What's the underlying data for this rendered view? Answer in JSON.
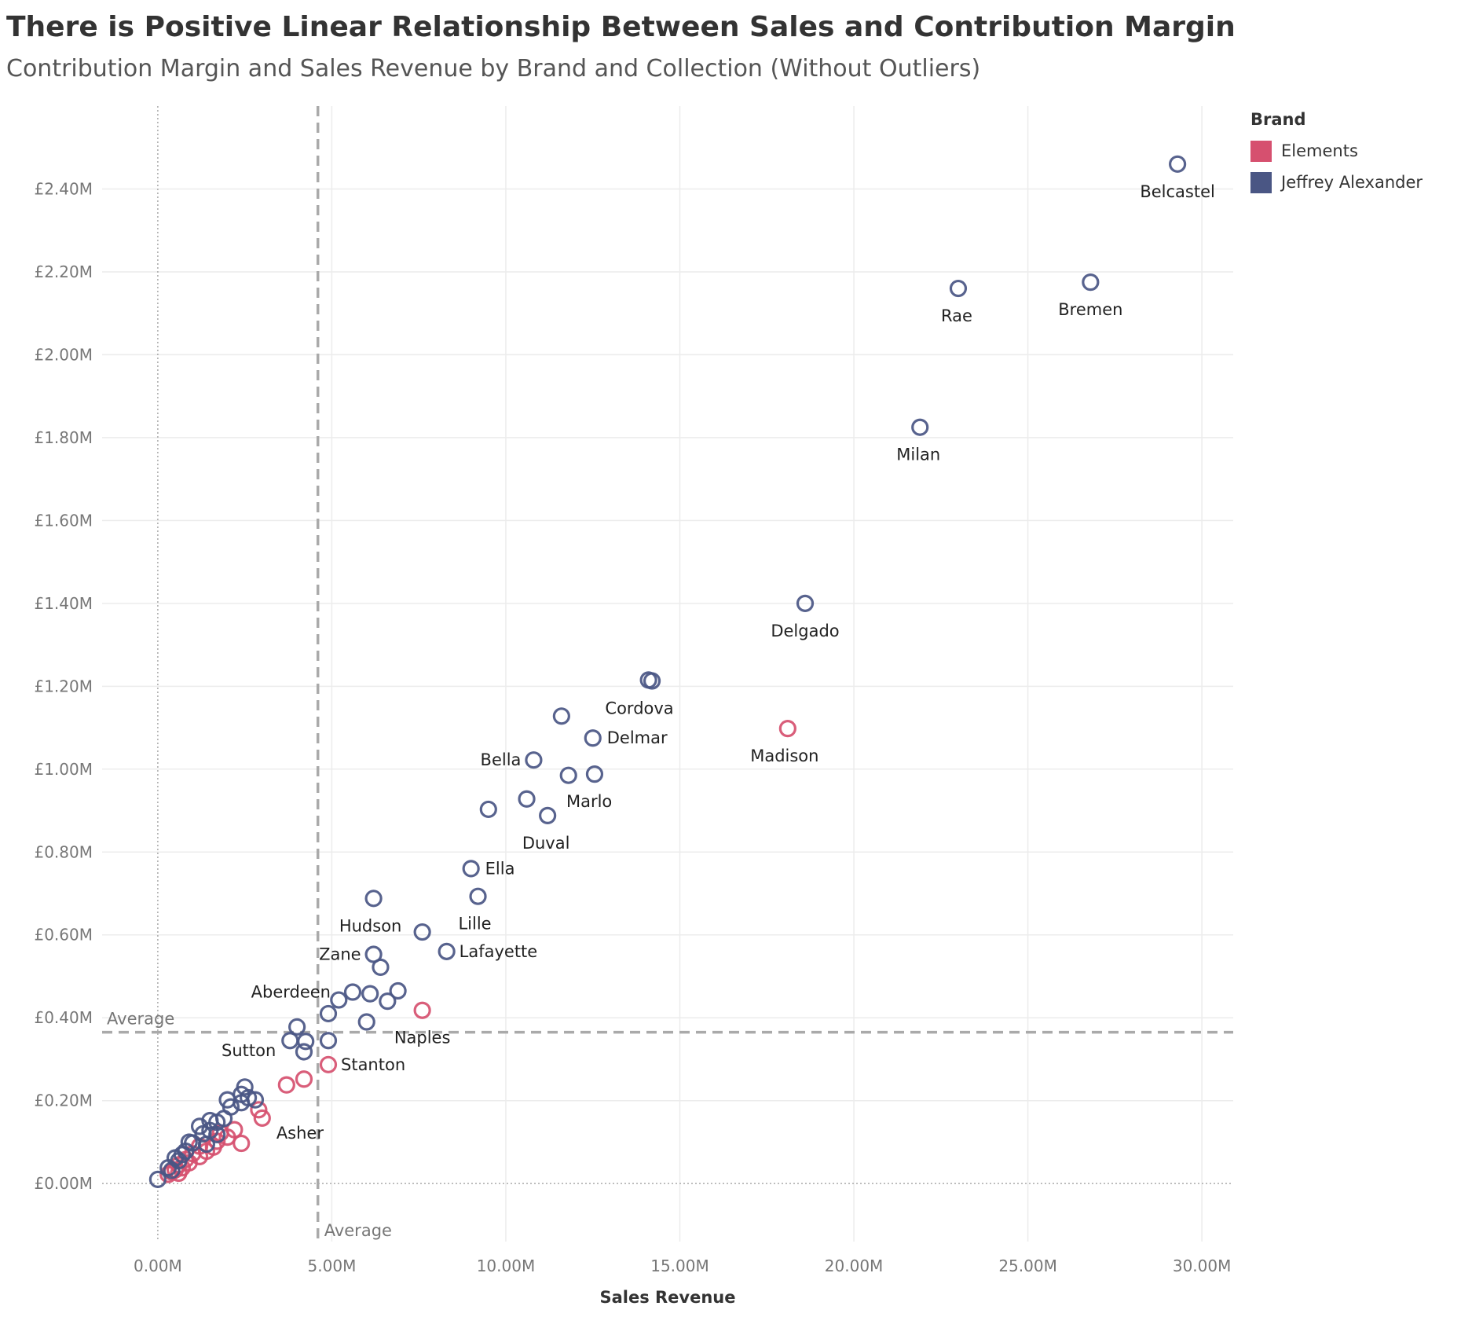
{
  "chart_data": {
    "type": "scatter",
    "title": "There is Positive Linear Relationship Between Sales and Contribution Margin",
    "subtitle": "Contribution Margin and Sales Revenue by Brand and Collection (Without Outliers)",
    "xlabel": "Sales Revenue",
    "ylabel": "",
    "xlim": [
      -1.6,
      30.9
    ],
    "ylim": [
      -0.14,
      2.6
    ],
    "x_ticks": [
      0,
      5,
      10,
      15,
      20,
      25,
      30
    ],
    "x_tick_labels": [
      "0.00M",
      "5.00M",
      "10.00M",
      "15.00M",
      "20.00M",
      "25.00M",
      "30.00M"
    ],
    "y_ticks": [
      0,
      0.2,
      0.4,
      0.6,
      0.8,
      1.0,
      1.2,
      1.4,
      1.6,
      1.8,
      2.0,
      2.2,
      2.4
    ],
    "y_tick_labels": [
      "£0.00M",
      "£0.20M",
      "£0.40M",
      "£0.60M",
      "£0.80M",
      "£1.00M",
      "£1.20M",
      "£1.40M",
      "£1.60M",
      "£1.80M",
      "£2.00M",
      "£2.20M",
      "£2.40M"
    ],
    "grid": true,
    "legend": {
      "title": "Brand",
      "position": "top-right",
      "entries": [
        {
          "name": "Elements",
          "color": "#d6506f"
        },
        {
          "name": "Jeffrey Alexander",
          "color": "#4a5684"
        }
      ]
    },
    "reference_lines": {
      "x_average": {
        "value": 4.6,
        "label": "Average"
      },
      "y_average": {
        "value": 0.365,
        "label": "Average"
      }
    },
    "series": [
      {
        "name": "Jeffrey Alexander",
        "color": "#4a5684",
        "points": [
          {
            "x": 29.3,
            "y": 2.46,
            "label": "Belcastel"
          },
          {
            "x": 26.8,
            "y": 2.175,
            "label": "Bremen"
          },
          {
            "x": 23.0,
            "y": 2.16,
            "label": "Rae"
          },
          {
            "x": 21.9,
            "y": 1.825,
            "label": "Milan"
          },
          {
            "x": 18.6,
            "y": 1.4,
            "label": "Delgado"
          },
          {
            "x": 14.1,
            "y": 1.215,
            "label": ""
          },
          {
            "x": 14.2,
            "y": 1.213,
            "label": "Cordova"
          },
          {
            "x": 11.6,
            "y": 1.128,
            "label": ""
          },
          {
            "x": 12.5,
            "y": 1.075,
            "label": "Delmar"
          },
          {
            "x": 10.8,
            "y": 1.022,
            "label": "Bella"
          },
          {
            "x": 11.8,
            "y": 0.985,
            "label": ""
          },
          {
            "x": 12.55,
            "y": 0.988,
            "label": "Marlo"
          },
          {
            "x": 10.6,
            "y": 0.928,
            "label": ""
          },
          {
            "x": 9.5,
            "y": 0.903,
            "label": ""
          },
          {
            "x": 11.2,
            "y": 0.888,
            "label": "Duval"
          },
          {
            "x": 9.0,
            "y": 0.76,
            "label": "Ella"
          },
          {
            "x": 9.2,
            "y": 0.693,
            "label": "Lille"
          },
          {
            "x": 6.2,
            "y": 0.688,
            "label": "Hudson"
          },
          {
            "x": 7.6,
            "y": 0.607,
            "label": ""
          },
          {
            "x": 8.3,
            "y": 0.56,
            "label": "Lafayette"
          },
          {
            "x": 6.2,
            "y": 0.553,
            "label": "Zane"
          },
          {
            "x": 6.4,
            "y": 0.522,
            "label": ""
          },
          {
            "x": 5.6,
            "y": 0.462,
            "label": "Aberdeen"
          },
          {
            "x": 6.1,
            "y": 0.458,
            "label": ""
          },
          {
            "x": 6.9,
            "y": 0.465,
            "label": ""
          },
          {
            "x": 5.2,
            "y": 0.443,
            "label": ""
          },
          {
            "x": 6.6,
            "y": 0.44,
            "label": ""
          },
          {
            "x": 4.9,
            "y": 0.41,
            "label": ""
          },
          {
            "x": 6.0,
            "y": 0.39,
            "label": ""
          },
          {
            "x": 4.0,
            "y": 0.378,
            "label": ""
          },
          {
            "x": 3.8,
            "y": 0.345,
            "label": "Sutton"
          },
          {
            "x": 4.25,
            "y": 0.343,
            "label": ""
          },
          {
            "x": 4.9,
            "y": 0.345,
            "label": ""
          },
          {
            "x": 4.2,
            "y": 0.318,
            "label": ""
          },
          {
            "x": 2.5,
            "y": 0.233,
            "label": ""
          },
          {
            "x": 2.4,
            "y": 0.215,
            "label": ""
          },
          {
            "x": 2.6,
            "y": 0.207,
            "label": ""
          },
          {
            "x": 2.8,
            "y": 0.202,
            "label": ""
          },
          {
            "x": 2.0,
            "y": 0.202,
            "label": ""
          },
          {
            "x": 2.4,
            "y": 0.195,
            "label": ""
          },
          {
            "x": 2.1,
            "y": 0.185,
            "label": ""
          },
          {
            "x": 1.9,
            "y": 0.157,
            "label": ""
          },
          {
            "x": 1.5,
            "y": 0.152,
            "label": ""
          },
          {
            "x": 1.7,
            "y": 0.148,
            "label": ""
          },
          {
            "x": 1.2,
            "y": 0.138,
            "label": ""
          },
          {
            "x": 1.5,
            "y": 0.128,
            "label": ""
          },
          {
            "x": 1.3,
            "y": 0.12,
            "label": ""
          },
          {
            "x": 1.7,
            "y": 0.118,
            "label": ""
          },
          {
            "x": 0.9,
            "y": 0.1,
            "label": ""
          },
          {
            "x": 1.0,
            "y": 0.098,
            "label": ""
          },
          {
            "x": 1.4,
            "y": 0.095,
            "label": ""
          },
          {
            "x": 0.8,
            "y": 0.078,
            "label": ""
          },
          {
            "x": 0.7,
            "y": 0.07,
            "label": ""
          },
          {
            "x": 0.5,
            "y": 0.062,
            "label": ""
          },
          {
            "x": 0.6,
            "y": 0.055,
            "label": ""
          },
          {
            "x": 0.3,
            "y": 0.038,
            "label": ""
          },
          {
            "x": 0.4,
            "y": 0.032,
            "label": ""
          },
          {
            "x": 0.0,
            "y": 0.01,
            "label": ""
          }
        ]
      },
      {
        "name": "Elements",
        "color": "#d6506f",
        "points": [
          {
            "x": 18.1,
            "y": 1.098,
            "label": "Madison"
          },
          {
            "x": 7.6,
            "y": 0.418,
            "label": "Naples"
          },
          {
            "x": 4.9,
            "y": 0.287,
            "label": "Stanton"
          },
          {
            "x": 4.2,
            "y": 0.252,
            "label": ""
          },
          {
            "x": 3.7,
            "y": 0.238,
            "label": ""
          },
          {
            "x": 2.9,
            "y": 0.178,
            "label": ""
          },
          {
            "x": 3.0,
            "y": 0.158,
            "label": "Asher"
          },
          {
            "x": 2.2,
            "y": 0.13,
            "label": ""
          },
          {
            "x": 1.8,
            "y": 0.122,
            "label": ""
          },
          {
            "x": 2.0,
            "y": 0.112,
            "label": ""
          },
          {
            "x": 1.7,
            "y": 0.102,
            "label": ""
          },
          {
            "x": 2.4,
            "y": 0.097,
            "label": ""
          },
          {
            "x": 1.6,
            "y": 0.088,
            "label": ""
          },
          {
            "x": 1.2,
            "y": 0.09,
            "label": ""
          },
          {
            "x": 1.4,
            "y": 0.078,
            "label": ""
          },
          {
            "x": 1.0,
            "y": 0.072,
            "label": ""
          },
          {
            "x": 1.2,
            "y": 0.065,
            "label": ""
          },
          {
            "x": 0.8,
            "y": 0.058,
            "label": ""
          },
          {
            "x": 0.9,
            "y": 0.05,
            "label": ""
          },
          {
            "x": 0.6,
            "y": 0.045,
            "label": ""
          },
          {
            "x": 0.7,
            "y": 0.038,
            "label": ""
          },
          {
            "x": 0.5,
            "y": 0.033,
            "label": ""
          },
          {
            "x": 0.4,
            "y": 0.028,
            "label": ""
          },
          {
            "x": 0.6,
            "y": 0.025,
            "label": ""
          },
          {
            "x": 0.3,
            "y": 0.022,
            "label": ""
          }
        ]
      }
    ]
  }
}
